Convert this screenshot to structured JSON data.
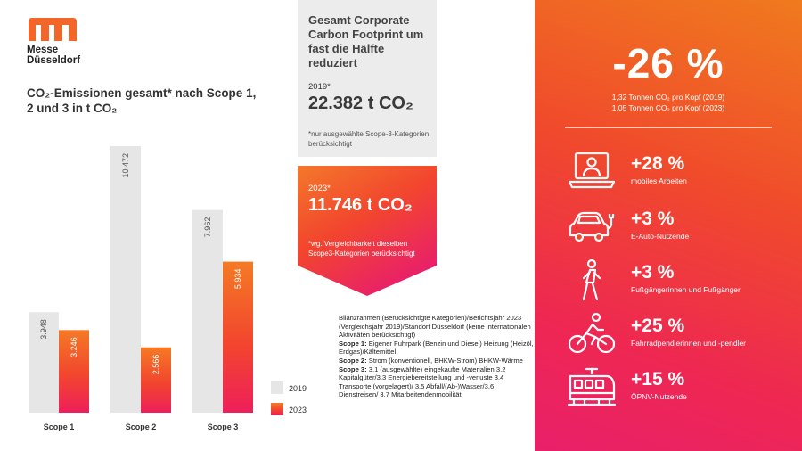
{
  "logo": {
    "line1": "Messe",
    "line2": "Düsseldorf"
  },
  "chart_data": {
    "type": "bar",
    "title": "CO₂-Emissionen gesamt* nach Scope 1, 2 und 3 in t CO₂",
    "categories": [
      "Scope 1",
      "Scope 2",
      "Scope 3"
    ],
    "series": [
      {
        "name": "2019",
        "values": [
          3948,
          10472,
          7962
        ],
        "labels": [
          "3.948",
          "10.472",
          "7.962"
        ],
        "color": "#e6e6e6",
        "label_color": "#555555"
      },
      {
        "name": "2023",
        "values": [
          3246,
          2566,
          5934
        ],
        "labels": [
          "3.246",
          "2.566",
          "5.934"
        ],
        "color": "#f2662a",
        "label_color": "#ffffff"
      }
    ],
    "ylim": [
      0,
      10472
    ],
    "legend": "right",
    "grid": false
  },
  "summary_2019": {
    "headline": "Gesamt Corporate Carbon Footprint um fast die Hälfte reduziert",
    "year": "2019*",
    "value": "22.382 t CO₂",
    "note": "*nur ausgewählte Scope-3-Kategorien berücksichtigt",
    "color": "#ececec"
  },
  "summary_2023": {
    "year": "2023*",
    "value": "11.746 t CO₂",
    "note": "*wg. Vergleichbarkeit dieselben Scope3-Kategorien berücksichtigt"
  },
  "scope_info": {
    "intro": "Bilanzrahmen (Berücksichtigte Kategorien)/Berichtsjahr 2023 (Vergleichsjahr 2019)/Standort Düsseldorf (keine internationalen Aktivitäten berücksichtigt)",
    "scope1_label": "Scope 1:",
    "scope1_text": " Eigener Fuhrpark (Benzin und Diesel) Heizung (Heizöl, Erdgas)/Kältemittel",
    "scope2_label": "Scope 2:",
    "scope2_text": " Strom (konventionell, BHKW-Strom) BHKW-Wärme",
    "scope3_label": "Scope 3:",
    "scope3_text": " 3.1 (ausgewählte) eingekaufte Materialien 3.2 Kapitalgüter/3.3 Energiebereitstellung und -verluste 3.4 Transporte (vorgelagert)/ 3.5 Abfall/(Ab-)Wasser/3.6 Dienstreisen/ 3.7 Mitarbeitendenmobilität"
  },
  "reduction": {
    "value": "-26 %",
    "line1": "1,32 Tonnen CO₂ pro Kopf (2019)",
    "line2": "1,05 Tonnen CO₂ pro Kopf (2023)"
  },
  "stats": [
    {
      "icon": "laptop-person-icon",
      "value": "+28 %",
      "label": "mobiles Arbeiten"
    },
    {
      "icon": "electric-car-icon",
      "value": "+3 %",
      "label": "E-Auto-Nutzende"
    },
    {
      "icon": "pedestrian-icon",
      "value": "+3 %",
      "label": "Fußgängerinnen und Fußgänger"
    },
    {
      "icon": "cyclist-icon",
      "value": "+25 %",
      "label": "Fahrradpendlerinnen und -pendler"
    },
    {
      "icon": "train-icon",
      "value": "+15 %",
      "label": "ÖPNV-Nutzende"
    }
  ],
  "colors": {
    "brand": "#f2662a",
    "panel_top": "#f07a1e",
    "panel_bottom": "#e9206a"
  }
}
